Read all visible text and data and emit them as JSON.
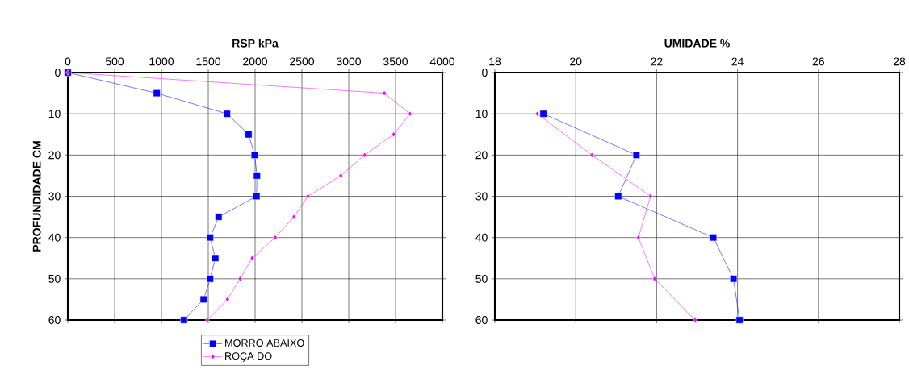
{
  "chart_data": [
    {
      "type": "line",
      "title": "RSP kPa",
      "ylabel": "PROFUNDIDADE CM",
      "xlim": [
        0,
        4000
      ],
      "xticks": [
        0,
        500,
        1000,
        1500,
        2000,
        2500,
        3000,
        3500,
        4000
      ],
      "ylim": [
        60,
        0
      ],
      "yticks": [
        0,
        10,
        20,
        30,
        40,
        50,
        60
      ],
      "grid": true,
      "legend": "bottom",
      "line_style": "solid",
      "series": [
        {
          "name": "MORRO ABAIXO",
          "color": "#0000ff",
          "marker": "square",
          "x": [
            0,
            950,
            1700,
            1930,
            1995,
            2020,
            2015,
            1610,
            1520,
            1575,
            1520,
            1450,
            1240
          ],
          "values": [
            0,
            5,
            10,
            15,
            20,
            25,
            30,
            35,
            40,
            45,
            50,
            55,
            60
          ]
        },
        {
          "name": "ROÇA DO",
          "color": "#ff00ff",
          "marker": "diamond",
          "x": [
            0,
            3380,
            3655,
            3480,
            3170,
            2915,
            2565,
            2415,
            2215,
            1970,
            1840,
            1705,
            1490
          ],
          "values": [
            0,
            5,
            10,
            15,
            20,
            25,
            30,
            35,
            40,
            45,
            50,
            55,
            60
          ]
        }
      ]
    },
    {
      "type": "line",
      "title": "UMIDADE %",
      "xlim": [
        18,
        28
      ],
      "xticks": [
        18,
        20,
        22,
        24,
        26,
        28
      ],
      "ylim": [
        60,
        0
      ],
      "yticks": [
        0,
        10,
        20,
        30,
        40,
        50,
        60
      ],
      "grid": true,
      "line_style": "solid",
      "series": [
        {
          "color": "#0000ff",
          "marker": "square",
          "x": [
            19.2,
            21.5,
            21.05,
            23.4,
            23.9,
            24.05
          ],
          "values": [
            10,
            20,
            30,
            40,
            50,
            60
          ]
        },
        {
          "color": "#ff00ff",
          "marker": "diamond",
          "x": [
            19.05,
            20.4,
            21.85,
            21.55,
            21.95,
            22.95
          ],
          "values": [
            10,
            20,
            30,
            40,
            50,
            60
          ]
        }
      ]
    }
  ]
}
